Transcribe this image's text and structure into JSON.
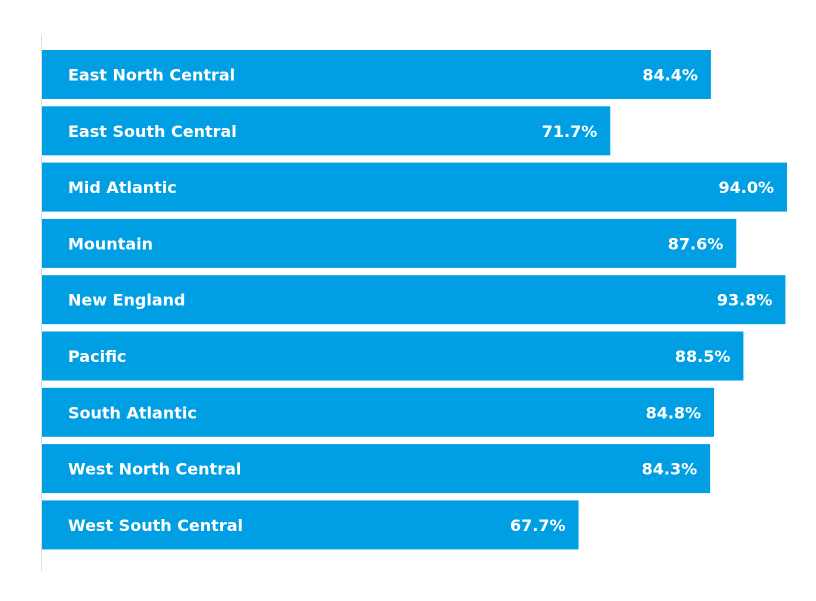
{
  "colors": {
    "bar": "#009fe3",
    "axis": "#dcdcdc",
    "text": "#ffffff",
    "background": "#ffffff"
  },
  "chart_data": {
    "type": "bar",
    "orientation": "horizontal",
    "title": "",
    "xlabel": "",
    "ylabel": "",
    "grid": false,
    "legend": "none",
    "xlim": [
      0,
      94.0
    ],
    "categories": [
      "East North Central",
      "East South Central",
      "Mid Atlantic",
      "Mountain",
      "New England",
      "Pacific",
      "South Atlantic",
      "West North Central",
      "West South Central"
    ],
    "values": [
      84.4,
      71.7,
      94.0,
      87.6,
      93.8,
      88.5,
      84.8,
      84.3,
      67.7
    ],
    "value_labels": [
      "84.4%",
      "71.7%",
      "94.0%",
      "87.6%",
      "93.8%",
      "88.5%",
      "84.8%",
      "84.3%",
      "67.7%"
    ]
  }
}
